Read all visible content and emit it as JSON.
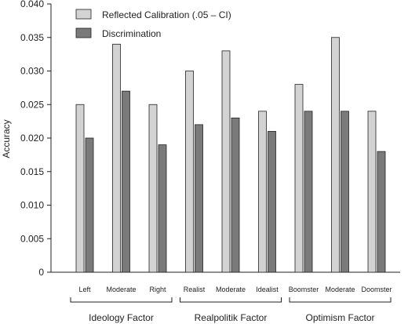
{
  "chart_data": {
    "type": "bar",
    "ylabel": "Accuracy",
    "ylim": [
      0,
      0.04
    ],
    "yticks": [
      "0",
      "0.005",
      "0.010",
      "0.015",
      "0.020",
      "0.025",
      "0.030",
      "0.035",
      "0.040"
    ],
    "categories": [
      "Left",
      "Moderate",
      "Right",
      "Realist",
      "Moderate",
      "Idealist",
      "Boomster",
      "Moderate",
      "Doomster"
    ],
    "groups": [
      {
        "label": "Ideology Factor",
        "span": [
          0,
          2
        ]
      },
      {
        "label": "Realpolitik Factor",
        "span": [
          3,
          5
        ]
      },
      {
        "label": "Optimism Factor",
        "span": [
          6,
          8
        ]
      }
    ],
    "series": [
      {
        "name": "Reflected Calibration (.05 – CI)",
        "color": "#d3d3d3",
        "values": [
          0.025,
          0.034,
          0.025,
          0.03,
          0.033,
          0.024,
          0.028,
          0.035,
          0.024
        ]
      },
      {
        "name": "Discrimination",
        "color": "#7a7a7a",
        "values": [
          0.02,
          0.027,
          0.019,
          0.022,
          0.023,
          0.021,
          0.024,
          0.024,
          0.018
        ]
      }
    ],
    "legend_position": "top-left",
    "grid": false
  }
}
